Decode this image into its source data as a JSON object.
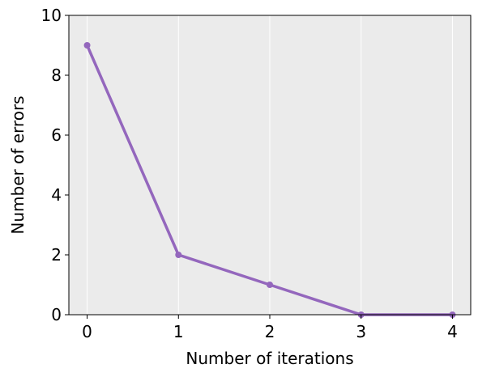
{
  "chart_data": {
    "type": "line",
    "title": "",
    "xlabel": "Number of iterations",
    "ylabel": "Number of errors",
    "x": [
      0,
      1,
      2,
      3,
      4
    ],
    "series": [
      {
        "name": "errors",
        "values": [
          9,
          2,
          1,
          0,
          0
        ]
      }
    ],
    "xlim": [
      -0.2,
      4.2
    ],
    "ylim": [
      0,
      10
    ],
    "xticks": [
      0,
      1,
      2,
      3,
      4
    ],
    "xtick_labels": [
      "0",
      "1",
      "2",
      "3",
      "4"
    ],
    "yticks": [
      0,
      2,
      4,
      6,
      8,
      10
    ],
    "ytick_labels": [
      "0",
      "2",
      "4",
      "6",
      "8",
      "10"
    ],
    "grid": "vertical",
    "colors": {
      "line": "#9467bd",
      "plot_background": "#ebebeb",
      "grid": "#ffffff"
    }
  }
}
